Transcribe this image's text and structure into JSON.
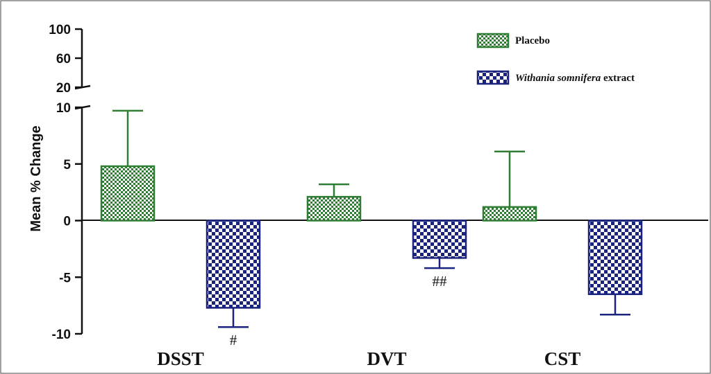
{
  "chart_data": {
    "type": "bar",
    "title": "",
    "xlabel": "",
    "ylabel": "Mean % Change",
    "categories": [
      "DSST",
      "DVT",
      "CST"
    ],
    "series": [
      {
        "name": "Placebo",
        "color": "#2e7d32",
        "pattern": "fine-checker",
        "values": [
          4.8,
          2.1,
          1.2
        ],
        "error_upper": [
          9.7,
          3.2,
          6.1
        ]
      },
      {
        "name_parts": {
          "italic": "Withania somnifera",
          "rest": " extract"
        },
        "color": "#1a237e",
        "pattern": "coarse-checker",
        "values": [
          -7.7,
          -3.3,
          -6.5
        ],
        "error_lower": [
          -9.4,
          -4.2,
          -8.3
        ]
      }
    ],
    "annotations": [
      "#",
      "##",
      ""
    ],
    "ylim_lower": [
      -10,
      10
    ],
    "yticks_lower": [
      "10",
      "5",
      "0",
      "-5",
      "-10"
    ],
    "yticks_upper": [
      "100",
      "60",
      "20"
    ],
    "axis_break": true,
    "legend_position": "top-right",
    "grid": false
  }
}
